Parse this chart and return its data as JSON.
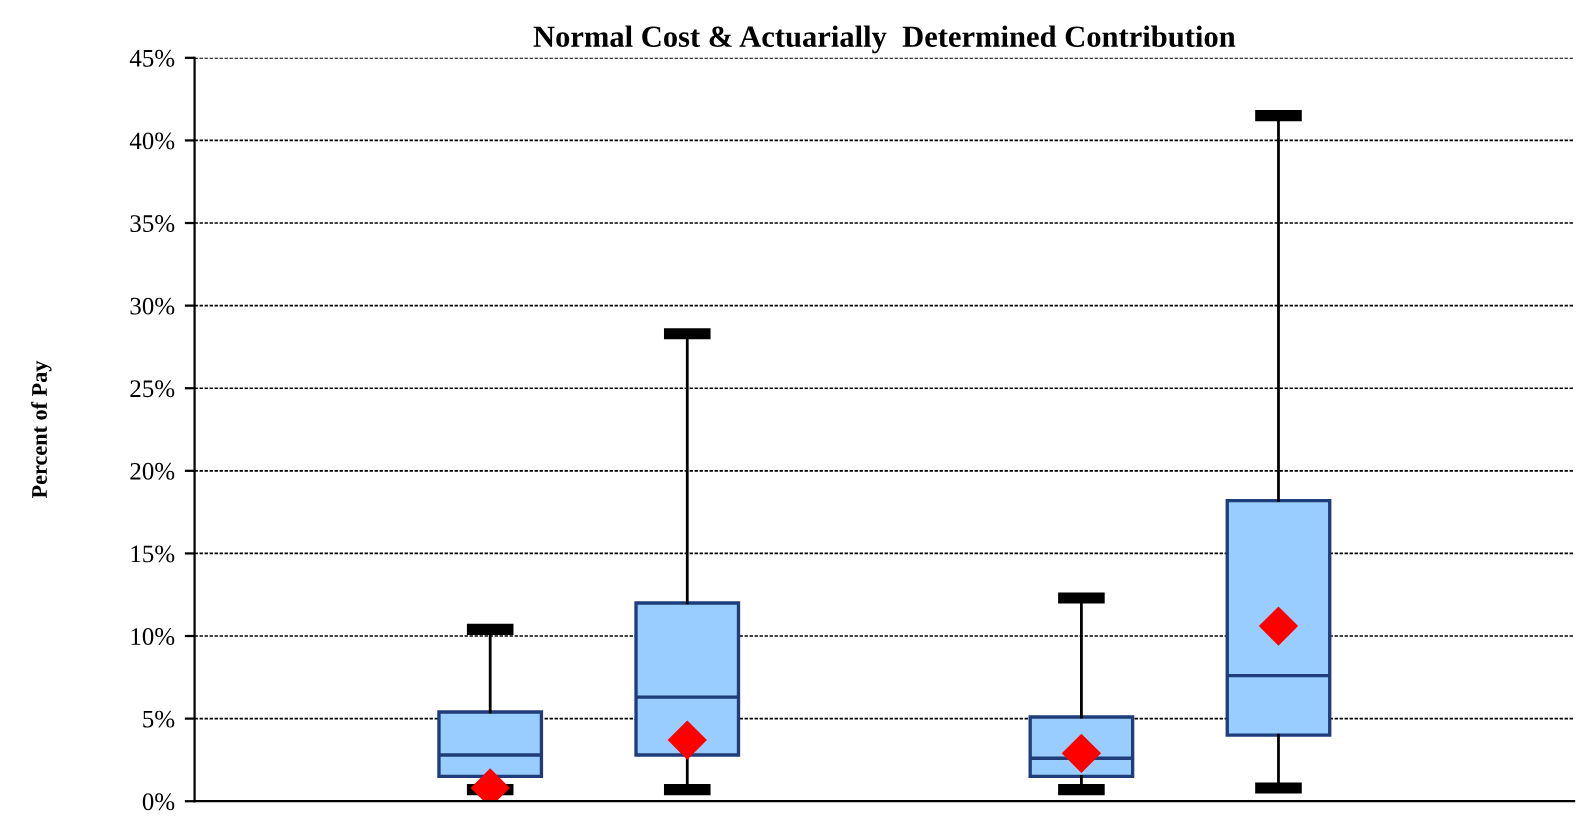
{
  "chart_data": {
    "type": "box",
    "title": "Normal Cost & Actuarially  Determined Contribution",
    "ylabel": "Percent of Pay",
    "categories": [
      null,
      null,
      null,
      null,
      null,
      null,
      null
    ],
    "series": [
      {
        "color": "#99ccff",
        "boxes": [
          null,
          {
            "low": 0.7,
            "q1": 1.5,
            "median": 2.8,
            "q3": 5.4,
            "high": 10.4,
            "mean": 0.8
          },
          {
            "low": 0.7,
            "q1": 2.8,
            "median": 6.3,
            "q3": 12.0,
            "high": 28.3,
            "mean": 3.7
          },
          null,
          {
            "low": 0.7,
            "q1": 1.5,
            "median": 2.6,
            "q3": 5.1,
            "high": 12.3,
            "mean": 2.9
          },
          {
            "low": 0.8,
            "q1": 4.0,
            "median": 7.6,
            "q3": 18.2,
            "high": 41.5,
            "mean": 10.6
          },
          null
        ]
      }
    ],
    "ylim": [
      0,
      45
    ],
    "yticks": [
      {
        "value": 0,
        "label": "0%"
      },
      {
        "value": 5,
        "label": "5%"
      },
      {
        "value": 10,
        "label": "10%"
      },
      {
        "value": 15,
        "label": "15%"
      },
      {
        "value": 20,
        "label": "20%"
      },
      {
        "value": 25,
        "label": "25%"
      },
      {
        "value": 30,
        "label": "30%"
      },
      {
        "value": 35,
        "label": "35%"
      },
      {
        "value": 40,
        "label": "40%"
      },
      {
        "value": 45,
        "label": "45%"
      }
    ],
    "grid": "y"
  }
}
